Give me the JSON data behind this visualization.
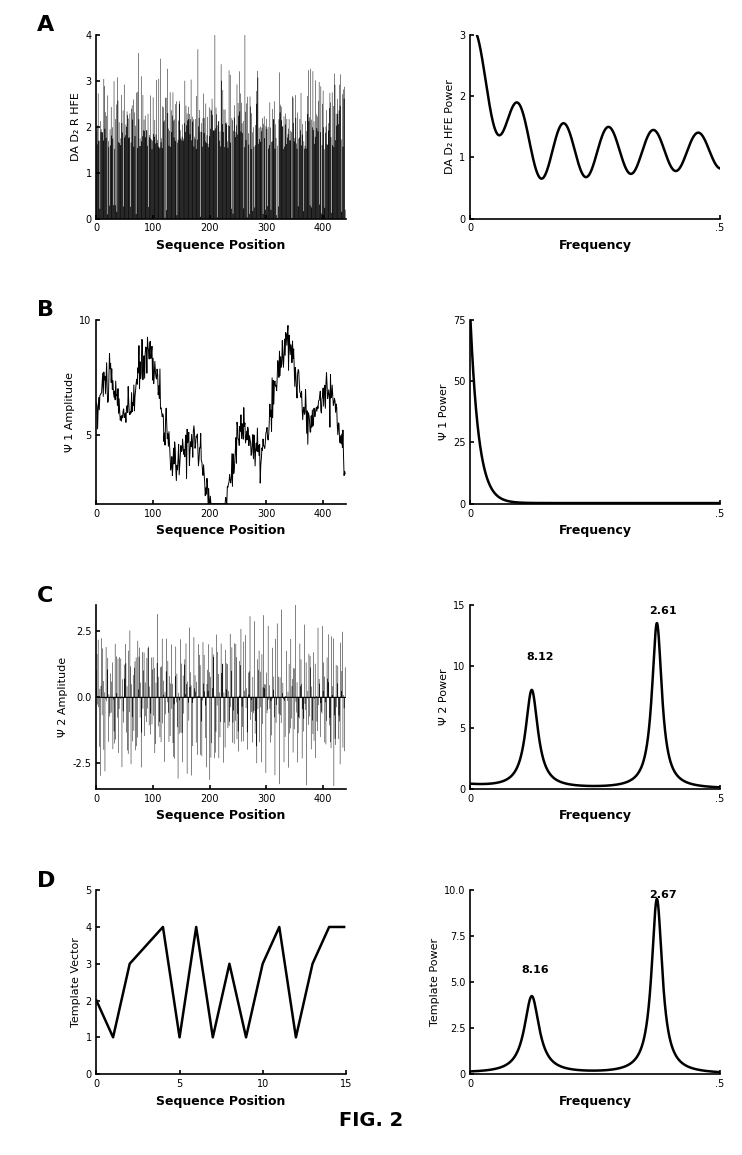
{
  "fig_width": 7.42,
  "fig_height": 11.55,
  "background_color": "#ffffff",
  "panel_labels": [
    "A",
    "B",
    "C",
    "D"
  ],
  "panel_label_fontsize": 16,
  "panel_label_weight": "bold",
  "A_left": {
    "ylabel": "DA D₂ R HFE",
    "xlabel": "Sequence Position",
    "xlim": [
      0,
      440
    ],
    "ylim": [
      0,
      4
    ],
    "yticks": [
      0,
      1,
      2,
      3,
      4
    ],
    "xticks": [
      0,
      100,
      200,
      300,
      400
    ]
  },
  "A_right": {
    "ylabel": "DA D₂ HFE Power",
    "xlabel": "Frequency",
    "xlim": [
      0,
      0.5
    ],
    "ylim": [
      0,
      3
    ],
    "yticks": [
      0,
      1,
      2,
      3
    ],
    "xticks": [
      0,
      0.5
    ],
    "xticklabels": [
      "0",
      ".5"
    ]
  },
  "B_left": {
    "ylabel": "Ψ 1 Amplitude",
    "xlabel": "Sequence Position",
    "xlim": [
      0,
      440
    ],
    "ylim": [
      2,
      10
    ],
    "yticks": [
      5,
      10
    ],
    "xticks": [
      0,
      100,
      200,
      300,
      400
    ]
  },
  "B_right": {
    "ylabel": "Ψ 1 Power",
    "xlabel": "Frequency",
    "xlim": [
      0,
      0.5
    ],
    "ylim": [
      0,
      75
    ],
    "yticks": [
      0,
      25,
      50,
      75
    ],
    "xticks": [
      0,
      0.5
    ],
    "xticklabels": [
      "0",
      ".5"
    ]
  },
  "C_left": {
    "ylabel": "Ψ 2 Amplitude",
    "xlabel": "Sequence Position",
    "xlim": [
      0,
      440
    ],
    "ylim": [
      -3.5,
      3.5
    ],
    "yticks": [
      -2.5,
      0.0,
      2.5
    ],
    "xticks": [
      0,
      100,
      200,
      300,
      400
    ]
  },
  "C_right": {
    "ylabel": "Ψ 2 Power",
    "xlabel": "Frequency",
    "xlim": [
      0,
      0.5
    ],
    "ylim": [
      0,
      15
    ],
    "yticks": [
      0,
      5,
      10,
      15
    ],
    "xticks": [
      0,
      0.5
    ],
    "xticklabels": [
      "0",
      ".5"
    ],
    "peak1_x": 0.123,
    "peak1_label": "8.12",
    "peak2_x": 0.374,
    "peak2_label": "2.61"
  },
  "D_left": {
    "ylabel": "Template Vector",
    "xlabel": "Sequence Position",
    "xlim": [
      0,
      15
    ],
    "ylim": [
      0,
      5
    ],
    "yticks": [
      0,
      1,
      2,
      3,
      4,
      5
    ],
    "xticks": [
      0,
      5,
      10,
      15
    ],
    "xdata": [
      0,
      1,
      2,
      4,
      5,
      6,
      7,
      8,
      9,
      10,
      11,
      12,
      13,
      14,
      14.9
    ],
    "ydata": [
      2,
      1,
      3,
      4,
      1,
      4,
      1,
      3,
      1,
      3,
      4,
      1,
      3,
      4,
      4
    ]
  },
  "D_right": {
    "ylabel": "Template Power",
    "xlabel": "Frequency",
    "xlim": [
      0,
      0.5
    ],
    "ylim": [
      0,
      10
    ],
    "yticks": [
      0,
      2.5,
      5.0,
      7.5,
      10.0
    ],
    "yticklabels": [
      "0",
      "2.5",
      "5.0",
      "7.5",
      "10.0"
    ],
    "xticks": [
      0,
      0.5
    ],
    "xticklabels": [
      "0",
      ".5"
    ],
    "peak1_x": 0.123,
    "peak1_label": "8.16",
    "peak2_x": 0.374,
    "peak2_label": "2.67"
  },
  "axis_linewidth": 1.2,
  "tick_fontsize": 7,
  "label_fontsize": 8,
  "xlabel_fontsize": 9,
  "xlabel_weight": "bold",
  "annotation_fontsize": 8,
  "annotation_weight": "bold",
  "line_color": "#000000",
  "line_width": 1.8
}
